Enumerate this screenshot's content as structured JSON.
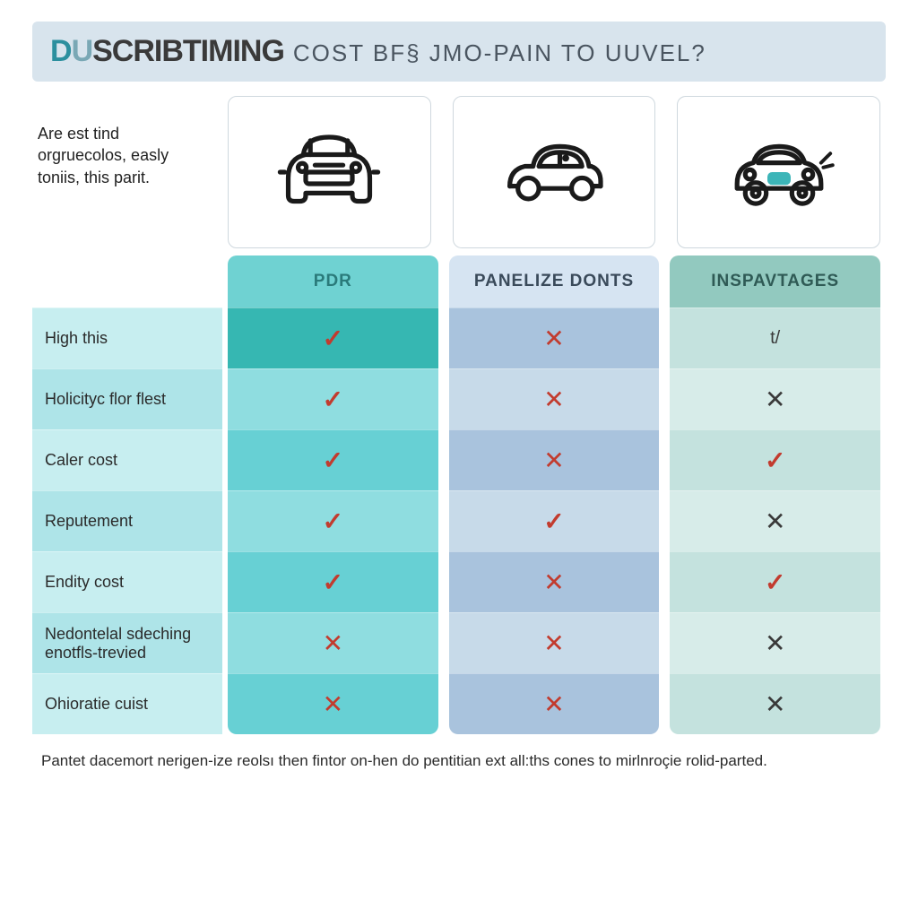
{
  "title": {
    "logo_accent": "D",
    "logo_mix": "U",
    "logo_dark": "SCRIBTIMING",
    "rest": "COST BF§ JMO-PAIN TO UUVEL?"
  },
  "intro": "Are est tind orgruecolos, easly toniis, this parit.",
  "columns": [
    {
      "label": "PDR",
      "header_bg": "#6fd2d2",
      "header_fg": "#2a7a7a",
      "row_colors": [
        "#36b7b2",
        "#8fdde0",
        "#67d0d4",
        "#8fdde0",
        "#67d0d4",
        "#8fdde0",
        "#67d0d4"
      ]
    },
    {
      "label": "PANELIZE DONTS",
      "header_bg": "#d6e4f2",
      "header_fg": "#3a4a5a",
      "row_colors": [
        "#a9c3dd",
        "#c7dae9",
        "#a9c3dd",
        "#c7dae9",
        "#a9c3dd",
        "#c7dae9",
        "#a9c3dd"
      ]
    },
    {
      "label": "INSPAVTAGES",
      "header_bg": "#92c9bf",
      "header_fg": "#2f5a55",
      "row_colors": [
        "#c4e2de",
        "#d7ece9",
        "#c4e2de",
        "#d7ece9",
        "#c4e2de",
        "#d7ece9",
        "#c4e2de"
      ]
    }
  ],
  "row_labels": [
    "High this",
    "Holicityc flor flest",
    "Caler cost",
    "Reputement",
    "Endity cost",
    "Nedontelal sdeching enotfls-trevied",
    "Ohioratie cuist"
  ],
  "label_row_colors": [
    "#c7eef0",
    "#aee4e8",
    "#c7eef0",
    "#aee4e8",
    "#c7eef0",
    "#aee4e8",
    "#c7eef0"
  ],
  "values": [
    [
      "check",
      "cross-red",
      "text:t/"
    ],
    [
      "check",
      "cross-red",
      "cross"
    ],
    [
      "check",
      "cross-red",
      "check"
    ],
    [
      "check",
      "check",
      "cross"
    ],
    [
      "check",
      "cross-red",
      "check"
    ],
    [
      "cross-red",
      "cross-red",
      "cross"
    ],
    [
      "cross-red",
      "cross-red",
      "cross"
    ]
  ],
  "footer": "Pantet dacemort nerigen-ize reolsı then fintor on-hen do pentitian ext all:ths cones to mirlnroçie rolid-parted.",
  "car_svgs": {
    "stroke": "#1a1a1a",
    "accent": "#3cb5b8"
  }
}
